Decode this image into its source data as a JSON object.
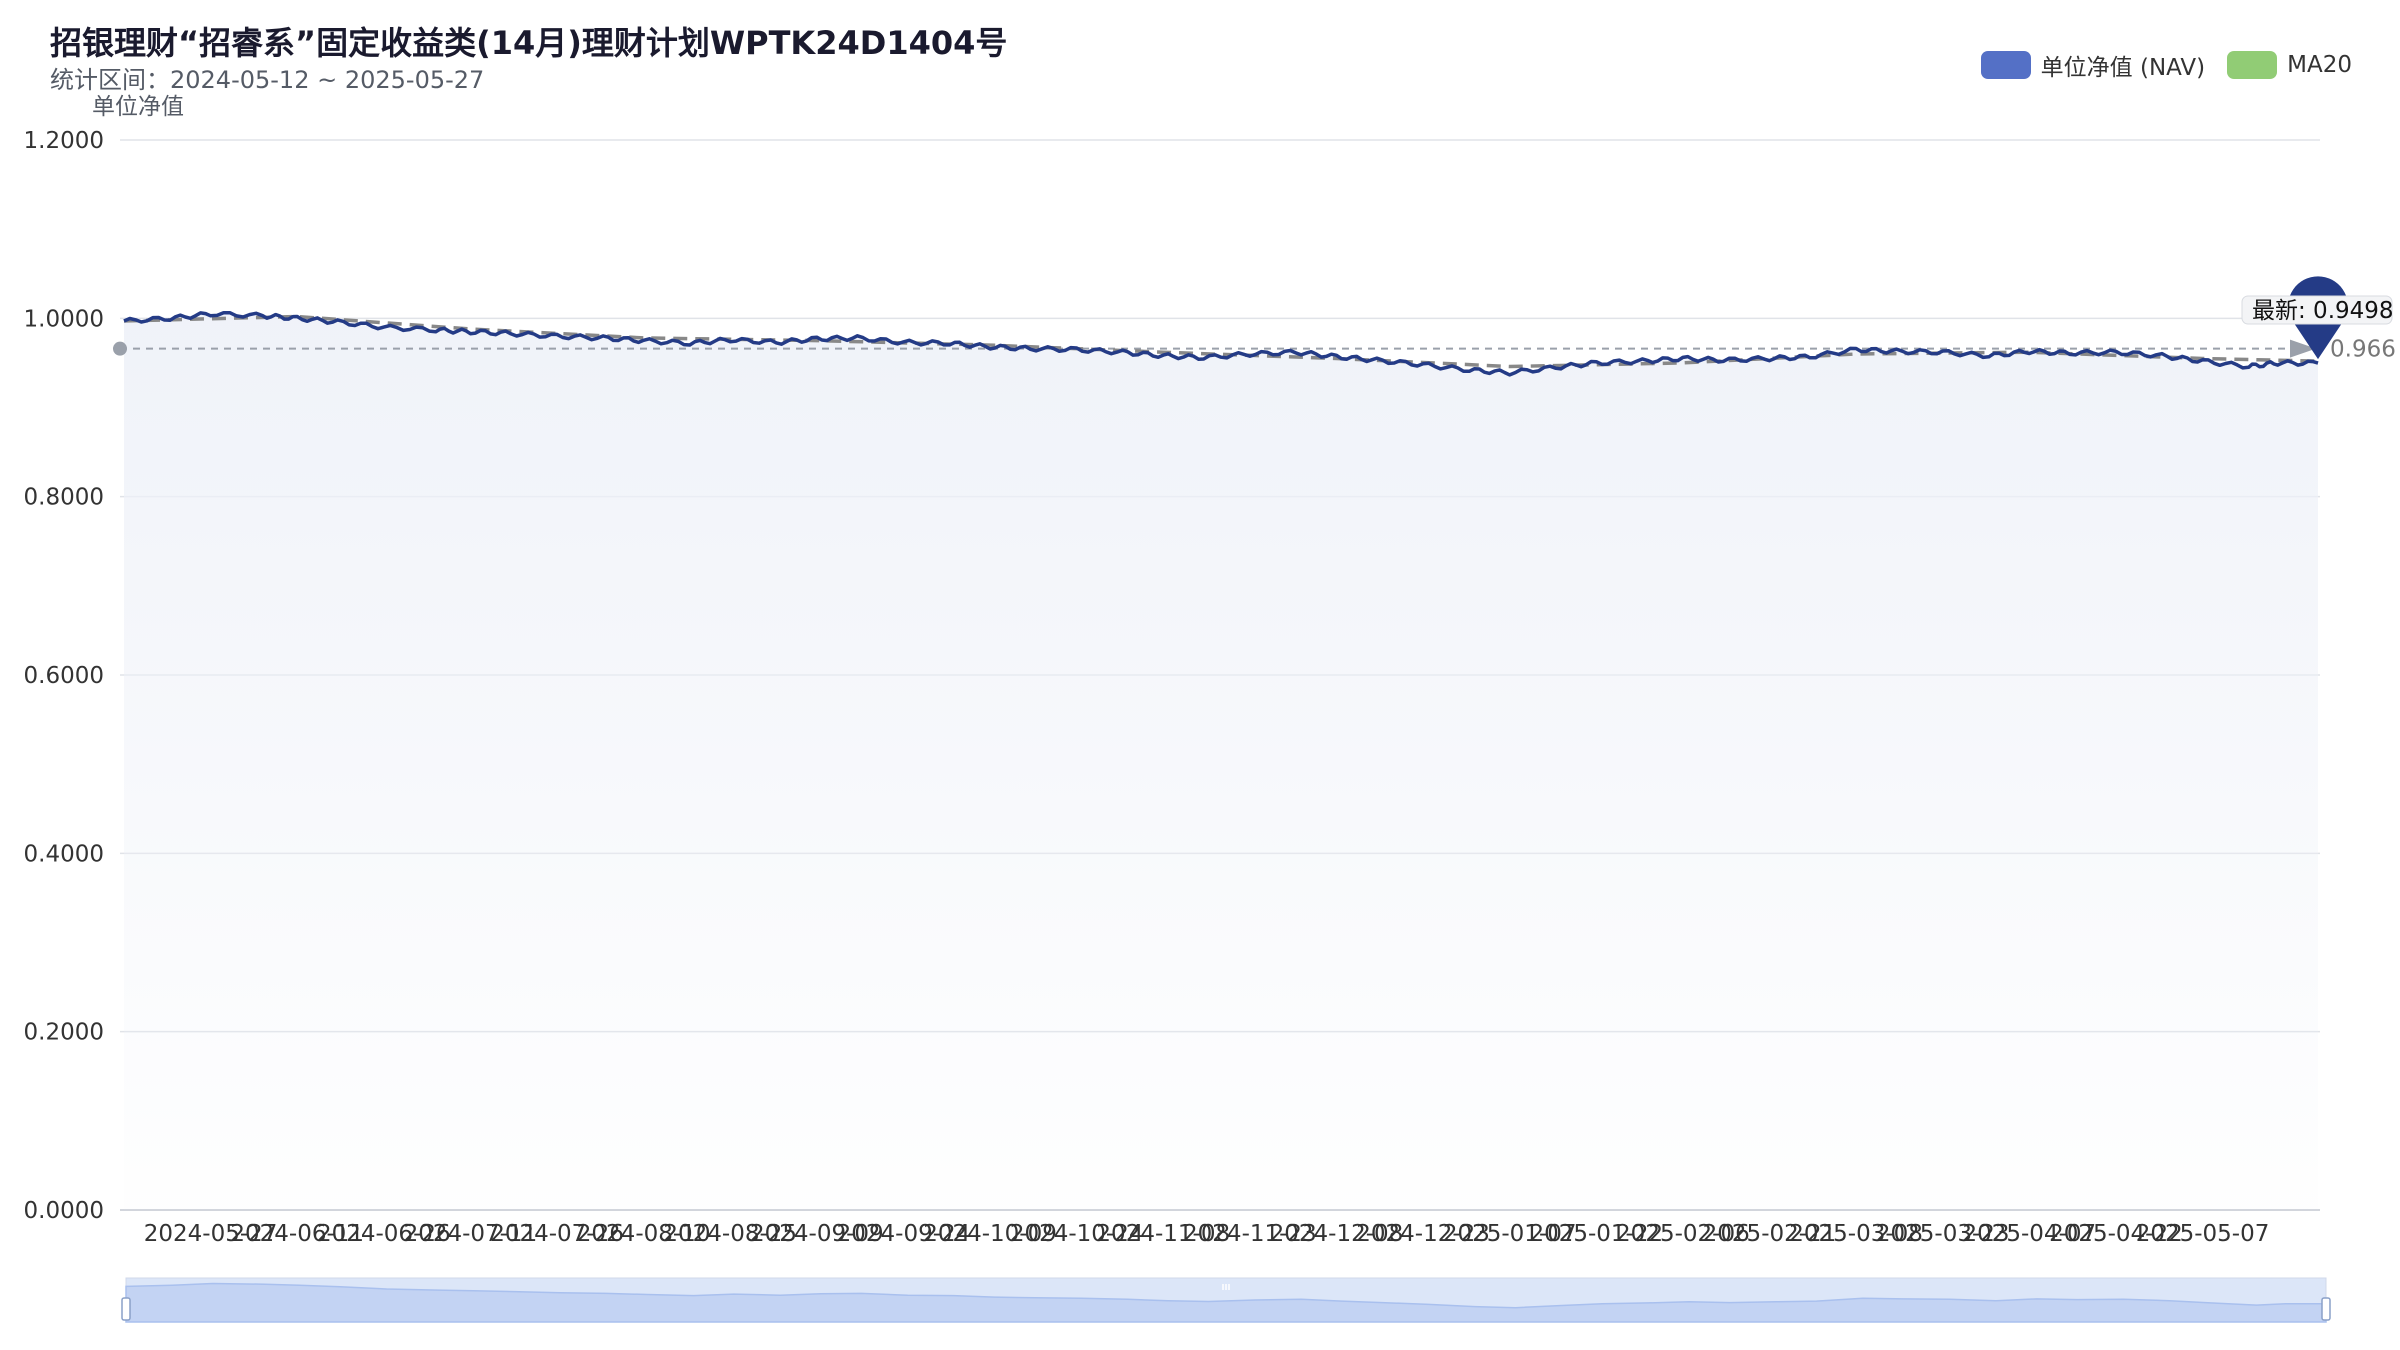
{
  "title": "招银理财“招睿系”固定收益类(14月)理财计划WPTK24D1404号",
  "subtitle": "统计区间：2024-05-12 ~ 2025-05-27",
  "legend": [
    {
      "label": "单位净值 (NAV)",
      "color": "#5470c6"
    },
    {
      "label": "MA20",
      "color": "#91cc75"
    }
  ],
  "colors": {
    "nav_line": "#243b86",
    "ma_line": "#888888",
    "area_fill": "#eef1f8",
    "grid": "#e0e3e8",
    "marker": "#243b86",
    "dataZoom_fill": "#dce6f8",
    "dataZoom_line": "#a9c0ee"
  },
  "chart_data": {
    "type": "line",
    "title": "招银理财“招睿系”固定收益类(14月)理财计划WPTK24D1404号",
    "subtitle": "统计区间：2024-05-12 ~ 2025-05-27",
    "ylabel": "单位净值",
    "xlabel": "",
    "ylim": [
      0.0,
      1.2
    ],
    "y_ticks": [
      "1.2000",
      "1.0000",
      "0.8000",
      "0.6000",
      "0.4000",
      "0.2000",
      "0.0000"
    ],
    "x_ticks": [
      "2024-05-27",
      "2024-06-11",
      "2024-06-26",
      "2024-07-11",
      "2024-07-26",
      "2024-08-10",
      "2024-08-25",
      "2024-09-09",
      "2024-09-24",
      "2024-10-09",
      "2024-10-24",
      "2024-11-08",
      "2024-11-23",
      "2024-12-08",
      "2024-12-23",
      "2025-01-07",
      "2025-01-22",
      "2025-02-06",
      "2025-02-21",
      "2025-03-08",
      "2025-03-23",
      "2025-04-07",
      "2025-04-22",
      "2025-05-07"
    ],
    "x_start": "2024-05-12",
    "x_end": "2025-05-27",
    "grid": true,
    "legend_position": "top-right",
    "series": [
      {
        "name": "单位净值 (NAV)",
        "x": [
          "2024-05-12",
          "2024-05-20",
          "2024-05-27",
          "2024-06-05",
          "2024-06-11",
          "2024-06-18",
          "2024-06-26",
          "2024-07-05",
          "2024-07-11",
          "2024-07-18",
          "2024-07-26",
          "2024-08-03",
          "2024-08-10",
          "2024-08-18",
          "2024-08-25",
          "2024-09-02",
          "2024-09-09",
          "2024-09-16",
          "2024-09-24",
          "2024-10-02",
          "2024-10-09",
          "2024-10-16",
          "2024-10-24",
          "2024-11-01",
          "2024-11-08",
          "2024-11-15",
          "2024-11-23",
          "2024-12-01",
          "2024-12-08",
          "2024-12-15",
          "2024-12-23",
          "2024-12-31",
          "2025-01-07",
          "2025-01-15",
          "2025-01-22",
          "2025-01-30",
          "2025-02-06",
          "2025-02-13",
          "2025-02-21",
          "2025-02-28",
          "2025-03-08",
          "2025-03-15",
          "2025-03-23",
          "2025-03-31",
          "2025-04-07",
          "2025-04-14",
          "2025-04-22",
          "2025-04-30",
          "2025-05-07",
          "2025-05-15",
          "2025-05-20",
          "2025-05-27"
        ],
        "values": [
          0.997,
          1.0,
          1.005,
          1.003,
          1.0,
          0.996,
          0.99,
          0.987,
          0.985,
          0.983,
          0.98,
          0.978,
          0.975,
          0.972,
          0.976,
          0.973,
          0.977,
          0.978,
          0.973,
          0.972,
          0.968,
          0.966,
          0.965,
          0.962,
          0.958,
          0.956,
          0.96,
          0.962,
          0.957,
          0.953,
          0.948,
          0.942,
          0.939,
          0.945,
          0.95,
          0.952,
          0.955,
          0.953,
          0.955,
          0.957,
          0.965,
          0.963,
          0.962,
          0.958,
          0.963,
          0.961,
          0.962,
          0.958,
          0.952,
          0.946,
          0.95,
          0.9498
        ]
      },
      {
        "name": "MA20",
        "x": [
          "2024-05-12",
          "2024-06-11",
          "2024-07-11",
          "2024-08-10",
          "2024-09-09",
          "2024-10-09",
          "2024-11-08",
          "2024-12-08",
          "2025-01-07",
          "2025-02-06",
          "2025-03-08",
          "2025-04-07",
          "2025-05-07",
          "2025-05-27"
        ],
        "values": [
          0.997,
          1.002,
          0.988,
          0.978,
          0.975,
          0.97,
          0.962,
          0.955,
          0.946,
          0.95,
          0.96,
          0.962,
          0.955,
          0.952
        ]
      }
    ],
    "reference_line": {
      "value": 0.966,
      "label": "0.966"
    },
    "end_annotation": {
      "label": "最新: 0.9498",
      "value": 0.9498,
      "date": "2025-05-27"
    }
  }
}
